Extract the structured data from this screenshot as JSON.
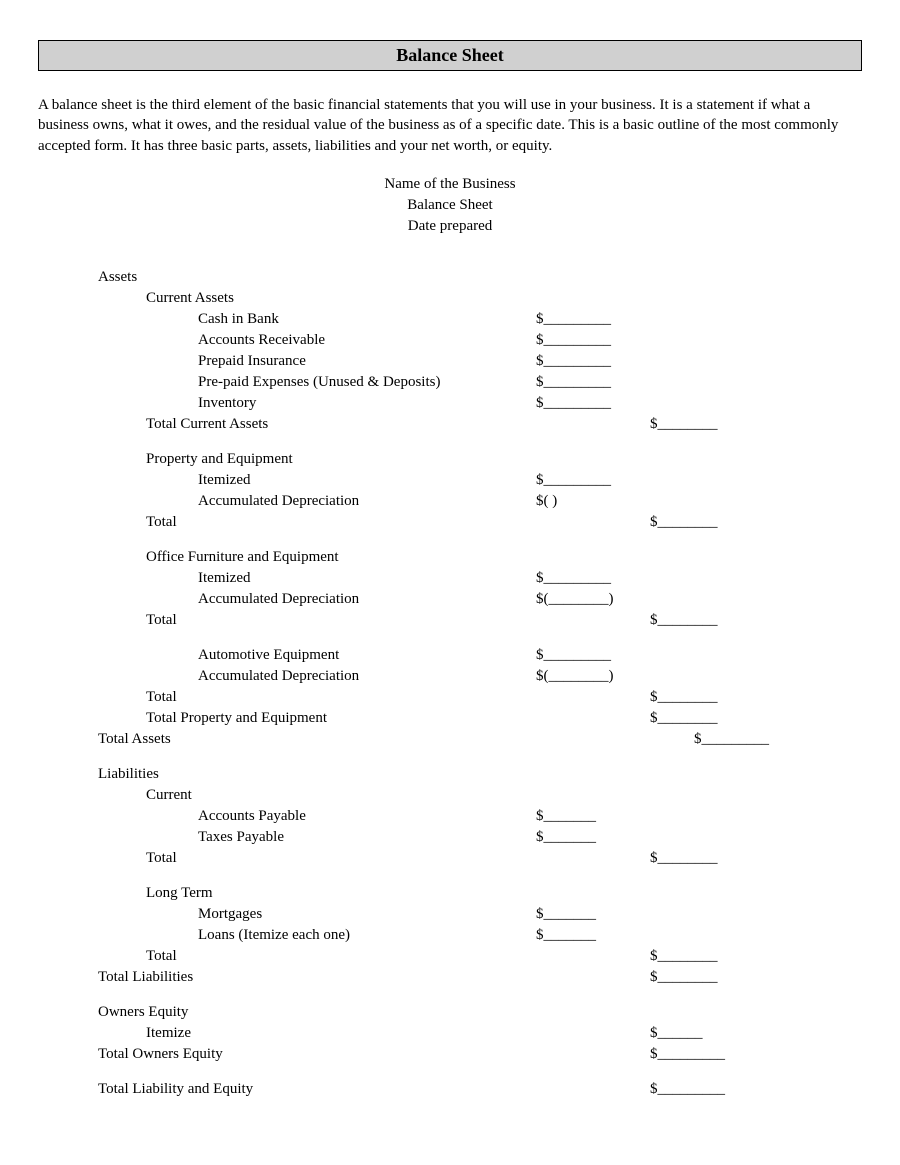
{
  "title": "Balance Sheet",
  "intro": "A balance sheet is the third element of the basic financial statements that you will use in your business. It is a statement if what a business owns, what it owes, and the residual value of the business as of a specific date. This is a basic outline of the most commonly accepted form. It has three basic parts, assets, liabilities and your net worth, or equity.",
  "header": {
    "line1": "Name of the Business",
    "line2": "Balance Sheet",
    "line3": "Date prepared"
  },
  "assets": {
    "heading": "Assets",
    "current": {
      "heading": "Current Assets",
      "items": {
        "cash": "Cash in Bank",
        "ar": "Accounts Receivable",
        "prepaid_ins": "Prepaid Insurance",
        "prepaid_exp": "Pre-paid Expenses (Unused & Deposits)",
        "inventory": "Inventory"
      },
      "total": "Total Current Assets"
    },
    "property": {
      "heading": "Property and Equipment",
      "itemized": "Itemized",
      "accdep": "Accumulated Depreciation",
      "total": "Total"
    },
    "office": {
      "heading": "Office Furniture and Equipment",
      "itemized": "Itemized",
      "accdep": "Accumulated Depreciation",
      "total": "Total"
    },
    "auto": {
      "itemized": "Automotive Equipment",
      "accdep": "Accumulated Depreciation",
      "total": "Total",
      "total_pe": "Total Property and Equipment"
    },
    "total": "Total Assets"
  },
  "liabilities": {
    "heading": "Liabilities",
    "current": {
      "heading": "Current",
      "ap": "Accounts Payable",
      "tax": "Taxes Payable",
      "total": "Total"
    },
    "longterm": {
      "heading": "Long Term",
      "mortgages": "Mortgages",
      "loans": "Loans (Itemize each one)",
      "total": "Total"
    },
    "total": "Total Liabilities"
  },
  "equity": {
    "heading": "Owners Equity",
    "itemize": "Itemize",
    "total": "Total Owners Equity"
  },
  "grand_total": "Total Liability and Equity",
  "blanks": {
    "long": "$_________",
    "med": "$________",
    "paren_open": "$(                 )",
    "paren_fill": "$(________)",
    "short": "$_______",
    "tiny": "$______"
  }
}
